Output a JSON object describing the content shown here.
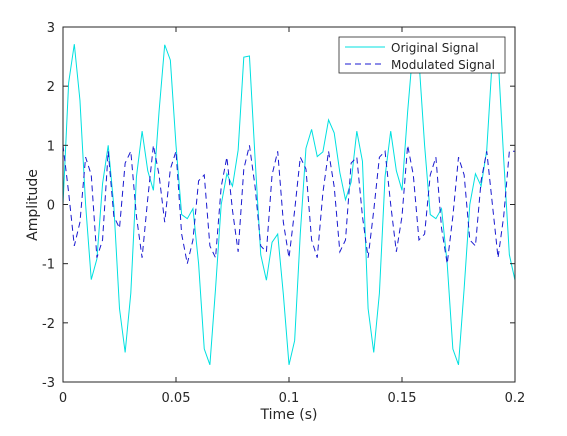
{
  "chart_data": {
    "type": "line",
    "xlabel": "Time (s)",
    "ylabel": "Amplitude",
    "xlim": [
      0,
      0.2
    ],
    "ylim": [
      -3,
      3
    ],
    "x_ticks": [
      0,
      0.05,
      0.1,
      0.15,
      0.2
    ],
    "x_tick_labels": [
      "0",
      "0.05",
      "0.1",
      "0.15",
      "0.2"
    ],
    "y_ticks": [
      -3,
      -2,
      -1,
      0,
      1,
      2,
      3
    ],
    "y_tick_labels": [
      "-3",
      "-2",
      "-1",
      "0",
      "1",
      "2",
      "3"
    ],
    "grid": false,
    "legend_position": "top-right",
    "series": [
      {
        "name": "Original Signal",
        "color": "#00e0e0",
        "line_style": "solid",
        "x": [
          0,
          0.0025,
          0.005,
          0.0075,
          0.01,
          0.0125,
          0.015,
          0.0175,
          0.02,
          0.0225,
          0.025,
          0.0275,
          0.03,
          0.0325,
          0.035,
          0.0375,
          0.04,
          0.0425,
          0.045,
          0.0475,
          0.05,
          0.0525,
          0.055,
          0.0575,
          0.06,
          0.0625,
          0.065,
          0.0675,
          0.07,
          0.0725,
          0.075,
          0.0775,
          0.08,
          0.0825,
          0.085,
          0.0875,
          0.09,
          0.0925,
          0.095,
          0.0975,
          0.1,
          0.1025,
          0.105,
          0.1075,
          0.11,
          0.1125,
          0.115,
          0.1175,
          0.12,
          0.1225,
          0.125,
          0.1275,
          0.13,
          0.1325,
          0.135,
          0.1375,
          0.14,
          0.1425,
          0.145,
          0.1475,
          0.15,
          0.1525,
          0.155,
          0.1575,
          0.16,
          0.1625,
          0.165,
          0.1675,
          0.17,
          0.1725,
          0.175,
          0.1775,
          0.18,
          0.1825,
          0.185,
          0.1875,
          0.19,
          0.1925,
          0.195,
          0.1975,
          0.2
        ],
        "y": [
          0,
          2.06,
          2.71,
          1.76,
          0,
          -1.27,
          -0.92,
          0.35,
          1,
          -0.03,
          -1.76,
          -2.5,
          -1.5,
          0.47,
          1.24,
          0.57,
          0.24,
          1.57,
          2.7,
          2.44,
          1,
          -0.17,
          -0.24,
          -0.07,
          -1,
          -2.44,
          -2.71,
          -1.42,
          0,
          0.52,
          0.31,
          0.92,
          2.49,
          2.51,
          0.77,
          -0.85,
          -1.28,
          -0.64,
          -0.5,
          -1.52,
          -2.71,
          -2.3,
          -0.49,
          0.95,
          1.27,
          0.81,
          0.89,
          1.43,
          1.21,
          0.54,
          0.08,
          0.38,
          1.24,
          0.73,
          -1.76,
          -2.5,
          -1.5,
          0.47,
          1.24,
          0.57,
          0.24,
          1.57,
          2.7,
          2.44,
          1,
          -0.17,
          -0.24,
          -0.07,
          -1,
          -2.44,
          -2.71,
          -1.42,
          0,
          0.52,
          0.31,
          0.92,
          2.49,
          2.51,
          0.77,
          -0.85,
          -1.28
        ]
      },
      {
        "name": "Modulated Signal",
        "color": "#1a1ad0",
        "line_style": "dashed",
        "x": [
          0,
          0.0025,
          0.005,
          0.0075,
          0.01,
          0.0125,
          0.015,
          0.0175,
          0.02,
          0.0225,
          0.025,
          0.0275,
          0.03,
          0.0325,
          0.035,
          0.0375,
          0.04,
          0.0425,
          0.045,
          0.0475,
          0.05,
          0.0525,
          0.055,
          0.0575,
          0.06,
          0.0625,
          0.065,
          0.0675,
          0.07,
          0.0725,
          0.075,
          0.0775,
          0.08,
          0.0825,
          0.085,
          0.0875,
          0.09,
          0.0925,
          0.095,
          0.0975,
          0.1,
          0.1025,
          0.105,
          0.1075,
          0.11,
          0.1125,
          0.115,
          0.1175,
          0.12,
          0.1225,
          0.125,
          0.1275,
          0.13,
          0.1325,
          0.135,
          0.1375,
          0.14,
          0.1425,
          0.145,
          0.1475,
          0.15,
          0.1525,
          0.155,
          0.1575,
          0.16,
          0.1625,
          0.165,
          0.1675,
          0.17,
          0.1725,
          0.175,
          0.1775,
          0.18,
          0.1825,
          0.185,
          0.1875,
          0.19,
          0.1925,
          0.195,
          0.1975,
          0.2
        ],
        "y": [
          1,
          0.2,
          -0.7,
          -0.3,
          0.8,
          0.5,
          -0.9,
          -0.6,
          0.9,
          -0.2,
          -0.4,
          0.7,
          0.9,
          -0.2,
          -0.9,
          0.1,
          1,
          0.5,
          -0.3,
          0.6,
          0.9,
          -0.5,
          -1,
          -0.6,
          0.4,
          0.5,
          -0.7,
          -0.9,
          0.3,
          0.8,
          -0.1,
          -0.8,
          0.6,
          1,
          0.3,
          -0.7,
          -0.8,
          0.5,
          0.9,
          -0.3,
          -0.9,
          -0.1,
          0.8,
          0.6,
          -0.6,
          -0.9,
          0.2,
          0.9,
          0.3,
          -0.8,
          -0.6,
          0.7,
          0.8,
          -0.2,
          -0.9,
          -0.1,
          0.8,
          0.9,
          0,
          -0.8,
          -0.2,
          1,
          0.5,
          -0.6,
          -0.5,
          0.5,
          0.8,
          -0.4,
          -1,
          -0.2,
          0.8,
          0.5,
          -0.6,
          -0.7,
          0.4,
          0.9,
          0,
          -0.9,
          -0.2,
          0.9,
          0.9
        ]
      }
    ]
  }
}
